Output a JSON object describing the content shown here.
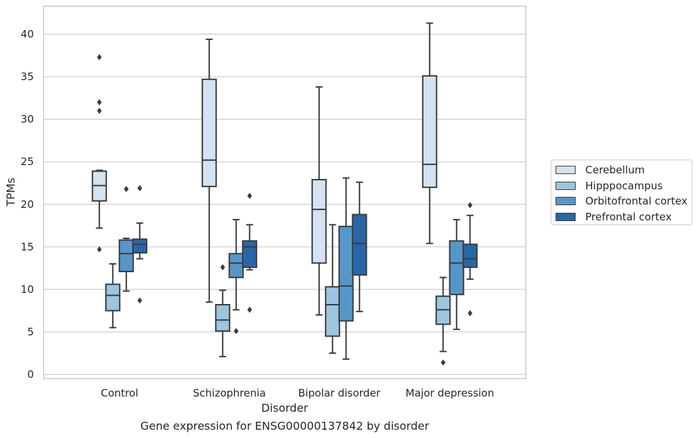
{
  "chart_data": {
    "type": "boxplot",
    "caption": "Gene expression for ENSG00000137842 by disorder",
    "xlabel": "Disorder",
    "ylabel": "TPMs",
    "ylim": [
      -0.5,
      43
    ],
    "yticks": [
      0,
      5,
      10,
      15,
      20,
      25,
      30,
      35,
      40
    ],
    "grid": "horizontal",
    "legend_position": "right",
    "categories": [
      "Control",
      "Schizophrenia",
      "Bipolar disorder",
      "Major depression"
    ],
    "series": [
      {
        "name": "Cerebellum",
        "color": "#d3e3f2",
        "boxes": [
          {
            "whislo": 17.2,
            "q1": 20.4,
            "med": 22.2,
            "q3": 23.9,
            "whishi": 24.0,
            "fliers": [
              14.7,
              31.0,
              32.0,
              37.3
            ]
          },
          {
            "whislo": 8.5,
            "q1": 22.1,
            "med": 25.2,
            "q3": 34.7,
            "whishi": 39.4,
            "fliers": []
          },
          {
            "whislo": 7.0,
            "q1": 13.1,
            "med": 19.4,
            "q3": 22.9,
            "whishi": 33.8,
            "fliers": []
          },
          {
            "whislo": 15.4,
            "q1": 22.0,
            "med": 24.7,
            "q3": 35.1,
            "whishi": 41.3,
            "fliers": []
          }
        ]
      },
      {
        "name": "Hipppocampus",
        "color": "#9cc5df",
        "boxes": [
          {
            "whislo": 5.5,
            "q1": 7.5,
            "med": 9.3,
            "q3": 10.6,
            "whishi": 13.0,
            "fliers": []
          },
          {
            "whislo": 2.1,
            "q1": 5.1,
            "med": 6.4,
            "q3": 8.2,
            "whishi": 9.9,
            "fliers": [
              12.6
            ]
          },
          {
            "whislo": 2.5,
            "q1": 4.5,
            "med": 8.2,
            "q3": 10.3,
            "whishi": 17.6,
            "fliers": []
          },
          {
            "whislo": 2.7,
            "q1": 5.9,
            "med": 7.6,
            "q3": 9.2,
            "whishi": 11.4,
            "fliers": [
              1.4
            ]
          }
        ]
      },
      {
        "name": "Orbitofrontal cortex",
        "color": "#5597c8",
        "boxes": [
          {
            "whislo": 9.8,
            "q1": 12.1,
            "med": 14.2,
            "q3": 15.8,
            "whishi": 16.0,
            "fliers": [
              21.8
            ]
          },
          {
            "whislo": 7.6,
            "q1": 11.4,
            "med": 13.1,
            "q3": 14.2,
            "whishi": 18.2,
            "fliers": [
              5.1
            ]
          },
          {
            "whislo": 1.8,
            "q1": 6.3,
            "med": 10.4,
            "q3": 17.4,
            "whishi": 23.1,
            "fliers": []
          },
          {
            "whislo": 5.3,
            "q1": 9.4,
            "med": 13.1,
            "q3": 15.7,
            "whishi": 18.2,
            "fliers": []
          }
        ]
      },
      {
        "name": "Prefrontal cortex",
        "color": "#2767a7",
        "boxes": [
          {
            "whislo": 13.6,
            "q1": 14.3,
            "med": 15.3,
            "q3": 15.9,
            "whishi": 17.8,
            "fliers": [
              8.7,
              21.9
            ]
          },
          {
            "whislo": 12.3,
            "q1": 12.6,
            "med": 15.0,
            "q3": 15.7,
            "whishi": 17.6,
            "fliers": [
              7.6,
              21.0
            ]
          },
          {
            "whislo": 7.4,
            "q1": 11.7,
            "med": 15.4,
            "q3": 18.8,
            "whishi": 22.6,
            "fliers": []
          },
          {
            "whislo": 11.2,
            "q1": 12.6,
            "med": 13.6,
            "q3": 15.3,
            "whishi": 18.7,
            "fliers": [
              7.2,
              19.9
            ]
          }
        ]
      }
    ]
  }
}
